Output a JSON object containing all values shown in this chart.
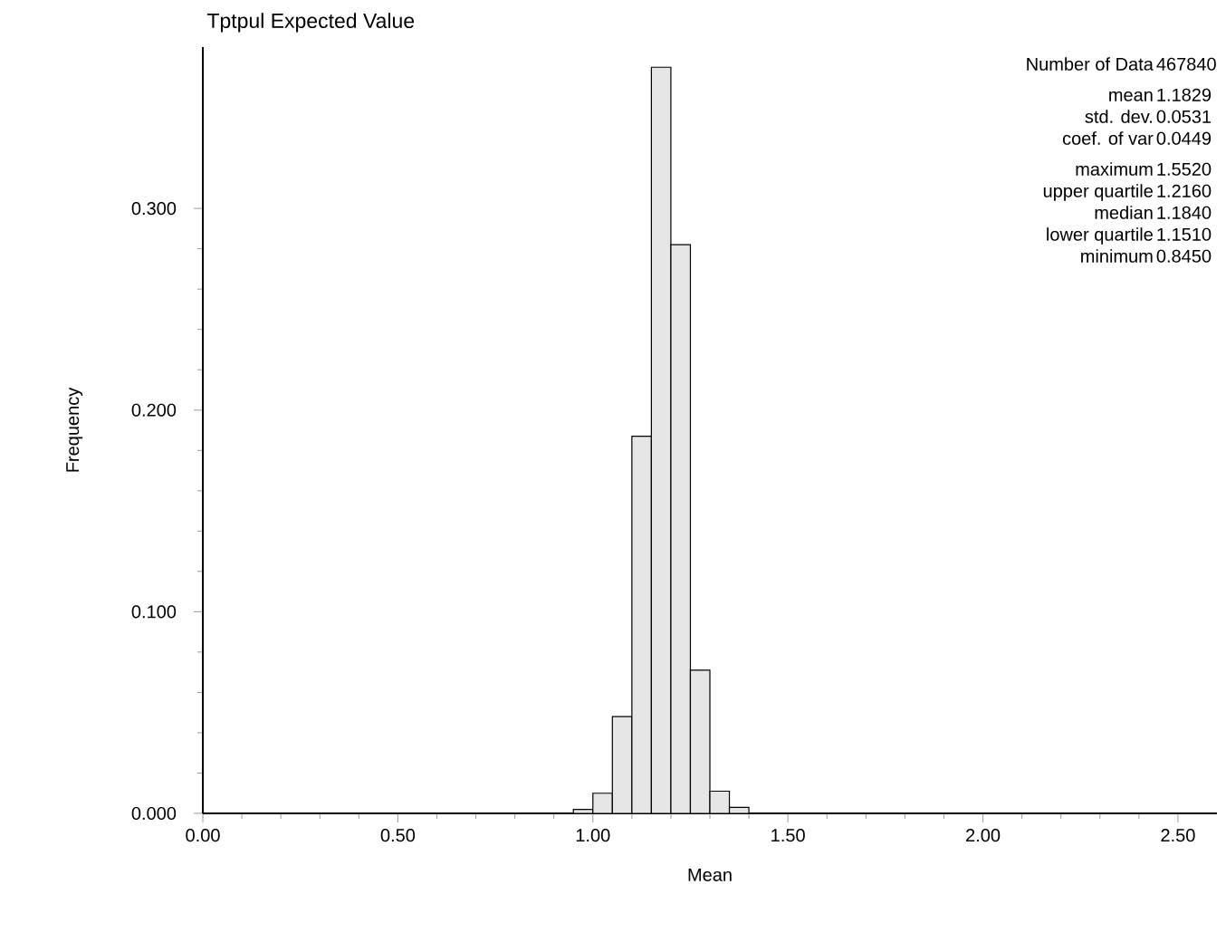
{
  "chart_data": {
    "type": "histogram",
    "title": "Tptpul Expected Value",
    "xlabel": "Mean",
    "ylabel": "Frequency",
    "bins": [
      0.95,
      1.0,
      1.05,
      1.1,
      1.15,
      1.2,
      1.25,
      1.3,
      1.35,
      1.4
    ],
    "values": [
      0.002,
      0.01,
      0.048,
      0.187,
      0.37,
      0.282,
      0.071,
      0.011,
      0.003
    ],
    "color": "#e6e6e6",
    "xlim": [
      0,
      2.6
    ],
    "ylim": [
      0,
      0.38
    ],
    "xticks": [
      {
        "value": 0,
        "label": "0.00"
      },
      {
        "value": 0.5,
        "label": "0.50"
      },
      {
        "value": 1.0,
        "label": "1.00"
      },
      {
        "value": 1.5,
        "label": "1.50"
      },
      {
        "value": 2.0,
        "label": "2.00"
      },
      {
        "value": 2.5,
        "label": "2.50"
      }
    ],
    "yticks": [
      {
        "value": 0,
        "label": "0.000"
      },
      {
        "value": 0.1,
        "label": "0.100"
      },
      {
        "value": 0.2,
        "label": "0.200"
      },
      {
        "value": 0.3,
        "label": "0.300"
      }
    ],
    "annotations": [
      "Number of Data",
      "467840",
      "mean",
      "1.1829",
      "std. dev.",
      "0.0531",
      "coef. of var",
      "0.0449",
      "maximum",
      "1.5520",
      "upper quartile",
      "1.2160",
      "median",
      "1.1840",
      "lower quartile",
      "1.1510",
      "minimum",
      "0.8450"
    ]
  }
}
